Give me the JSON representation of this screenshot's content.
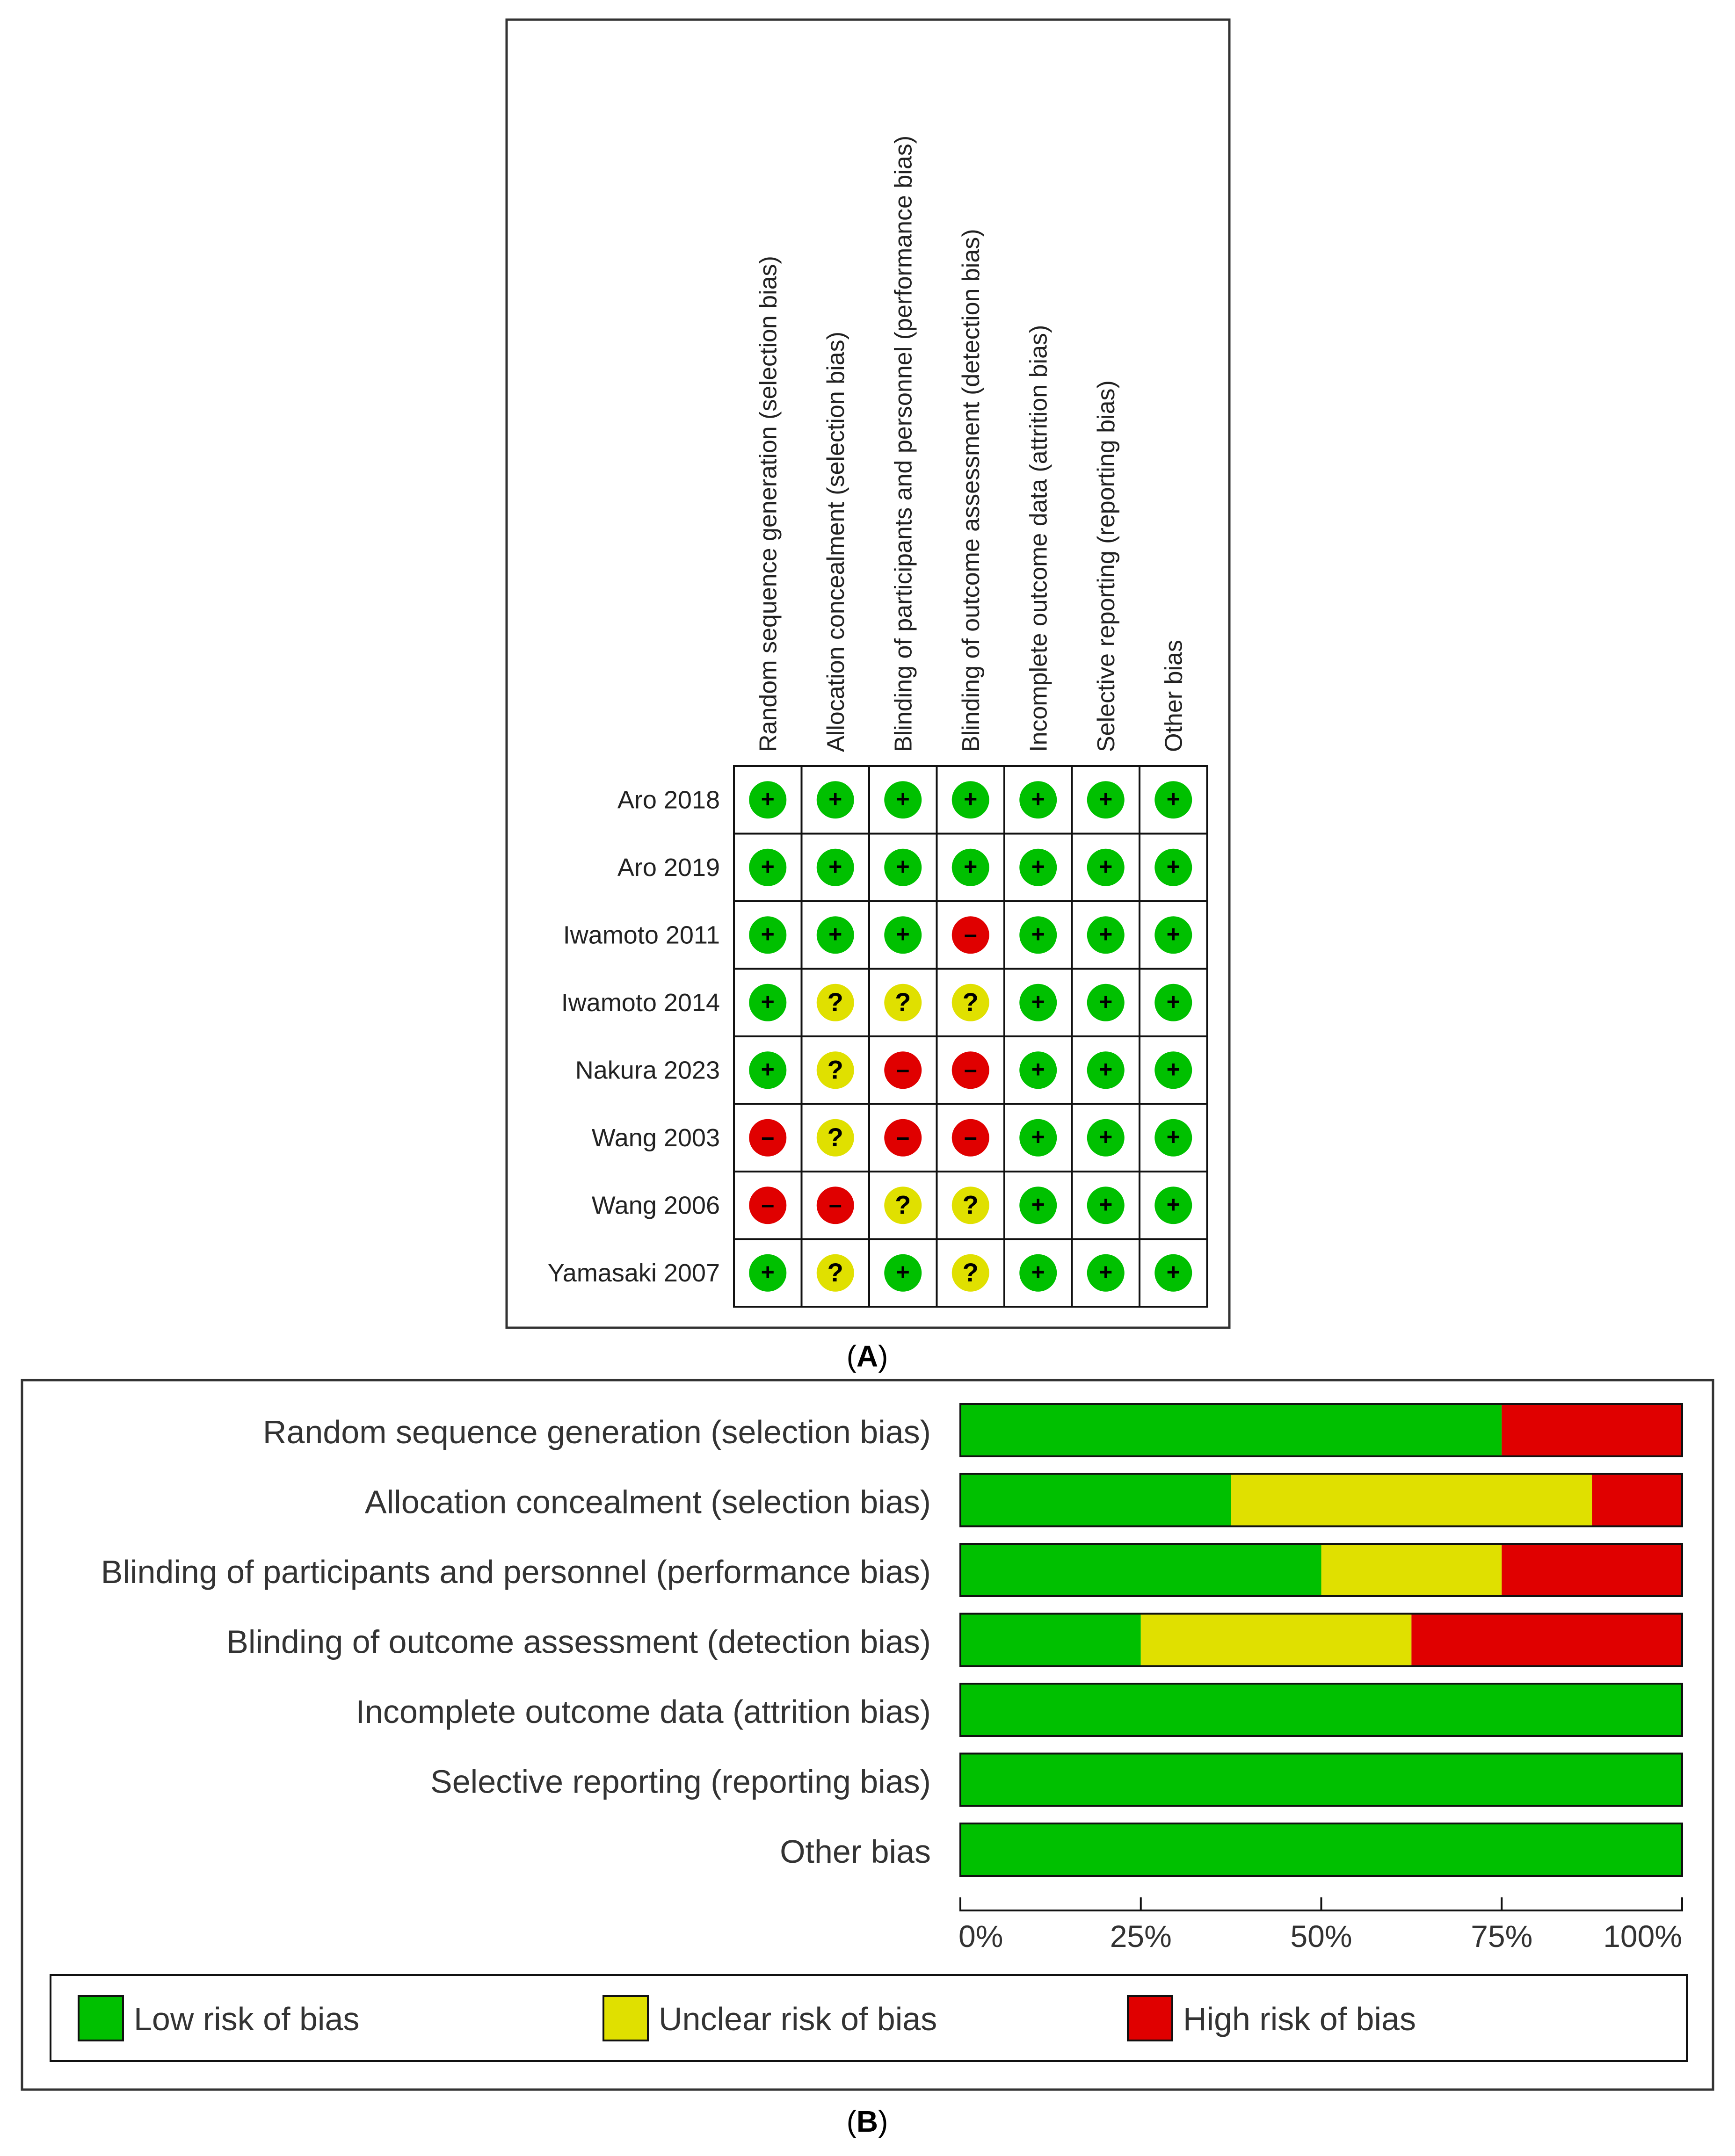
{
  "panel_a": {
    "caption_letter": "A",
    "domains": [
      "Random sequence generation (selection bias)",
      "Allocation concealment (selection bias)",
      "Blinding of participants and personnel (performance bias)",
      "Blinding of outcome assessment (detection bias)",
      "Incomplete outcome data (attrition bias)",
      "Selective reporting (reporting bias)",
      "Other bias"
    ],
    "studies": [
      {
        "name": "Aro 2018",
        "ratings": [
          "+",
          "+",
          "+",
          "+",
          "+",
          "+",
          "+"
        ]
      },
      {
        "name": "Aro 2019",
        "ratings": [
          "+",
          "+",
          "+",
          "+",
          "+",
          "+",
          "+"
        ]
      },
      {
        "name": "Iwamoto 2011",
        "ratings": [
          "+",
          "+",
          "+",
          "-",
          "+",
          "+",
          "+"
        ]
      },
      {
        "name": "Iwamoto 2014",
        "ratings": [
          "+",
          "?",
          "?",
          "?",
          "+",
          "+",
          "+"
        ]
      },
      {
        "name": "Nakura 2023",
        "ratings": [
          "+",
          "?",
          "-",
          "-",
          "+",
          "+",
          "+"
        ]
      },
      {
        "name": "Wang 2003",
        "ratings": [
          "-",
          "?",
          "-",
          "-",
          "+",
          "+",
          "+"
        ]
      },
      {
        "name": "Wang 2006",
        "ratings": [
          "-",
          "-",
          "?",
          "?",
          "+",
          "+",
          "+"
        ]
      },
      {
        "name": "Yamasaki 2007",
        "ratings": [
          "+",
          "?",
          "+",
          "?",
          "+",
          "+",
          "+"
        ]
      }
    ],
    "symbols": {
      "low": "+",
      "unclear": "?",
      "high": "–"
    }
  },
  "panel_b": {
    "caption_letter": "B"
  },
  "colors": {
    "low": "#00c000",
    "unclear": "#e0e000",
    "high": "#e00000"
  },
  "chart_data": {
    "type": "bar",
    "orientation": "horizontal-stacked-percent",
    "categories": [
      "Random sequence generation (selection bias)",
      "Allocation concealment (selection bias)",
      "Blinding of participants and personnel (performance bias)",
      "Blinding of outcome assessment (detection bias)",
      "Incomplete outcome data (attrition bias)",
      "Selective reporting (reporting bias)",
      "Other bias"
    ],
    "series": [
      {
        "name": "Low risk of bias",
        "values": [
          75,
          37.5,
          50,
          25,
          100,
          100,
          100
        ]
      },
      {
        "name": "Unclear risk of bias",
        "values": [
          0,
          50,
          25,
          37.5,
          0,
          0,
          0
        ]
      },
      {
        "name": "High risk of bias",
        "values": [
          25,
          12.5,
          25,
          37.5,
          0,
          0,
          0
        ]
      }
    ],
    "xlim": [
      0,
      100
    ],
    "xticks": [
      "0%",
      "25%",
      "50%",
      "75%",
      "100%"
    ],
    "legend": "bottom",
    "grid": false
  }
}
